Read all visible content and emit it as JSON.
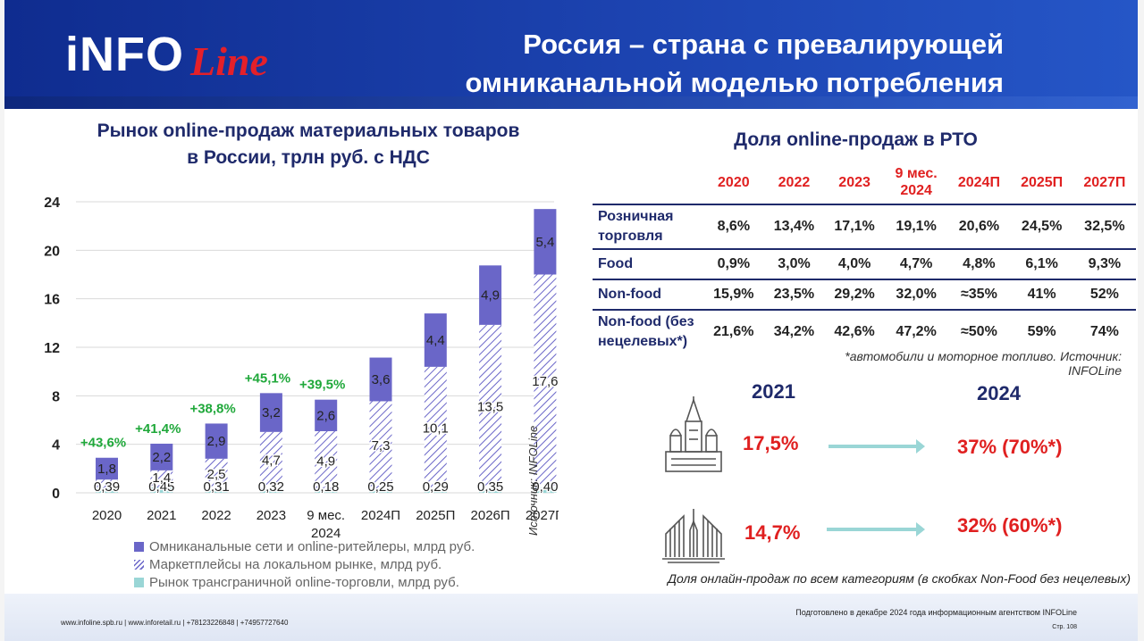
{
  "header": {
    "logo_main": "iNFO",
    "logo_script": "Line",
    "title_line1": "Россия – страна с превалирующей",
    "title_line2": "омниканальной моделью потребления"
  },
  "left_title_line1": "Рынок online-продаж материальных товаров",
  "left_title_line2": "в России, трлн руб. с НДС",
  "chart_data": {
    "type": "bar",
    "stacked": true,
    "ylim": [
      0,
      24
    ],
    "yticks": [
      "0",
      "4",
      "8",
      "12",
      "16",
      "20",
      "24"
    ],
    "categories": [
      "2020",
      "2021",
      "2022",
      "2023",
      "9 мес. 2024",
      "2024П",
      "2025П",
      "2026П",
      "2027П"
    ],
    "category_labels": [
      [
        "2020"
      ],
      [
        "2021"
      ],
      [
        "2022"
      ],
      [
        "2023"
      ],
      [
        "9 мес.",
        "2024"
      ],
      [
        "2024П"
      ],
      [
        "2025П"
      ],
      [
        "2026П"
      ],
      [
        "2027П"
      ]
    ],
    "series": [
      {
        "name": "Рынок трансграничной online-торговли, млрд руб.",
        "values": [
          0.39,
          0.45,
          0.31,
          0.32,
          0.18,
          0.25,
          0.29,
          0.35,
          0.4
        ],
        "labels": [
          "0,39",
          "0,45",
          "0,31",
          "0,32",
          "0,18",
          "0,25",
          "0,29",
          "0,35",
          "0,40"
        ],
        "color": "#9ad6d6"
      },
      {
        "name": "Маркетплейсы на локальном рынке, млрд руб.",
        "values": [
          0.7,
          1.4,
          2.5,
          4.7,
          4.9,
          7.3,
          10.1,
          13.5,
          17.6
        ],
        "labels": [
          "",
          "1,4",
          "2,5",
          "4,7",
          "4,9",
          "7,3",
          "10,1",
          "13,5",
          "17,6"
        ],
        "color": "#6a66c8"
      },
      {
        "name": "Омниканальные сети и online-ритейлеры, млрд руб.",
        "values": [
          1.8,
          2.2,
          2.9,
          3.2,
          2.6,
          3.6,
          4.4,
          4.9,
          5.4
        ],
        "labels": [
          "1,8",
          "2,2",
          "2,9",
          "3,2",
          "2,6",
          "3,6",
          "4,4",
          "4,9",
          "5,4"
        ],
        "color": "#6a66c8"
      }
    ],
    "growth_labels": [
      "+43,6%",
      "+41,4%",
      "+38,8%",
      "+45,1%",
      "+39,5%",
      "",
      "",
      "",
      ""
    ],
    "growth_color": "#1fa83a"
  },
  "legend": [
    "Омниканальные сети и online-ритейлеры, млрд руб.",
    "Маркетплейсы на локальном рынке, млрд руб.",
    "Рынок трансграничной online-торговли, млрд руб."
  ],
  "rto": {
    "title": "Доля online-продаж в РТО",
    "headers": [
      [
        "2020"
      ],
      [
        "2022"
      ],
      [
        "2023"
      ],
      [
        "9 мес.",
        "2024"
      ],
      [
        "2024П"
      ],
      [
        "2025П"
      ],
      [
        "2027П"
      ]
    ],
    "rows": [
      {
        "label": [
          "Розничная",
          "торговля"
        ],
        "values": [
          "8,6%",
          "13,4%",
          "17,1%",
          "19,1%",
          "20,6%",
          "24,5%",
          "32,5%"
        ]
      },
      {
        "label": [
          "Food"
        ],
        "values": [
          "0,9%",
          "3,0%",
          "4,0%",
          "4,7%",
          "4,8%",
          "6,1%",
          "9,3%"
        ]
      },
      {
        "label": [
          "Non-food"
        ],
        "values": [
          "15,9%",
          "23,5%",
          "29,2%",
          "32,0%",
          "≈35%",
          "41%",
          "52%"
        ]
      },
      {
        "label": [
          "Non-food (без",
          "нецелевых*)"
        ],
        "values": [
          "21,6%",
          "34,2%",
          "42,6%",
          "47,2%",
          "≈50%",
          "59%",
          "74%"
        ]
      }
    ],
    "footnote": "*автомобили и моторное топливо. Источник: INFOLine"
  },
  "cities": {
    "year_a": "2021",
    "year_b": "2024",
    "moscow_a": "17,5%",
    "moscow_b": "37% (70%*)",
    "spb_a": "14,7%",
    "spb_b": "32% (60%*)",
    "moscow_icon": "kremlin-cathedral-icon",
    "spb_icon": "drawbridge-icon",
    "note": "Доля онлайн-продаж по всем категориям (в скобках Non-Food без нецелевых)",
    "source_vertical": "Источник: INFOLine"
  },
  "footer": {
    "contacts": "www.infoline.spb.ru | www.inforetail.ru | +78123226848 | +74957727640",
    "prepared": "Подготовлено в декабре 2024 года информационным агентством INFOLine",
    "page": "Стр. 108"
  }
}
